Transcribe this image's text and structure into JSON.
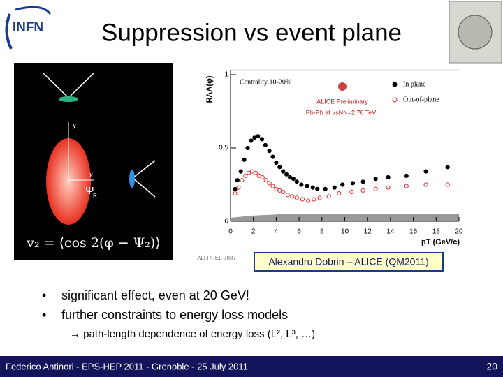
{
  "header": {
    "logo": "INFN",
    "title": "Suppression vs event plane"
  },
  "diagram": {
    "y_label": "y",
    "x_label": "x",
    "psi_label": "Ψ",
    "psi_sub": "R",
    "formula": "v₂ = ⟨cos 2(φ − Ψ₂)⟩"
  },
  "chart_data": {
    "type": "scatter",
    "ylabel": "RAA(φ)",
    "xlabel": "pT (GeV/c)",
    "annotations": [
      "Centrality 10-20%",
      "ALICE Preliminary",
      "Pb-Pb at √sNN=2.76 TeV",
      "ALI-PREL-7887"
    ],
    "xlim": [
      0,
      20
    ],
    "ylim": [
      0,
      1
    ],
    "xticks": [
      0,
      2,
      4,
      6,
      8,
      10,
      12,
      14,
      16,
      18,
      20
    ],
    "yticks": [
      0,
      0.5,
      1
    ],
    "series": [
      {
        "name": "In plane",
        "color": "#000000",
        "filled": true,
        "x": [
          0.4,
          0.6,
          0.9,
          1.2,
          1.5,
          1.8,
          2.1,
          2.4,
          2.75,
          3.05,
          3.4,
          3.7,
          4.0,
          4.3,
          4.6,
          4.9,
          5.2,
          5.5,
          5.8,
          6.2,
          6.7,
          7.2,
          7.6,
          8.3,
          9.1,
          9.8,
          10.7,
          11.6,
          12.7,
          13.8,
          15.4,
          17.1,
          19.0
        ],
        "values": [
          0.22,
          0.28,
          0.34,
          0.42,
          0.5,
          0.55,
          0.57,
          0.58,
          0.56,
          0.52,
          0.48,
          0.44,
          0.4,
          0.37,
          0.34,
          0.32,
          0.3,
          0.29,
          0.27,
          0.25,
          0.24,
          0.23,
          0.22,
          0.22,
          0.23,
          0.25,
          0.26,
          0.27,
          0.29,
          0.3,
          0.31,
          0.34,
          0.37
        ]
      },
      {
        "name": "Out-of-plane",
        "color": "#e03030",
        "filled": false,
        "x": [
          0.4,
          0.7,
          1.0,
          1.3,
          1.6,
          1.9,
          2.2,
          2.5,
          2.8,
          3.1,
          3.4,
          3.7,
          4.0,
          4.3,
          4.6,
          5.0,
          5.4,
          5.8,
          6.3,
          6.8,
          7.3,
          7.8,
          8.6,
          9.5,
          10.6,
          11.6,
          12.7,
          13.8,
          15.4,
          17.1,
          19.0
        ],
        "values": [
          0.19,
          0.23,
          0.28,
          0.31,
          0.33,
          0.34,
          0.33,
          0.31,
          0.3,
          0.28,
          0.26,
          0.24,
          0.22,
          0.21,
          0.2,
          0.18,
          0.17,
          0.16,
          0.15,
          0.14,
          0.15,
          0.16,
          0.17,
          0.19,
          0.2,
          0.21,
          0.22,
          0.23,
          0.24,
          0.25,
          0.25
        ]
      }
    ]
  },
  "credit": "Alexandru Dobrin – ALICE (QM2011)",
  "bullets": [
    "significant effect, even at 20 GeV!",
    "further constraints to energy loss models"
  ],
  "sub_bullet": "→ path-length dependence of energy loss (L², L³, …)",
  "footer": {
    "text": "Federico Antinori - EPS-HEP 2011 - Grenoble - 25 July 2011",
    "page": "20"
  }
}
